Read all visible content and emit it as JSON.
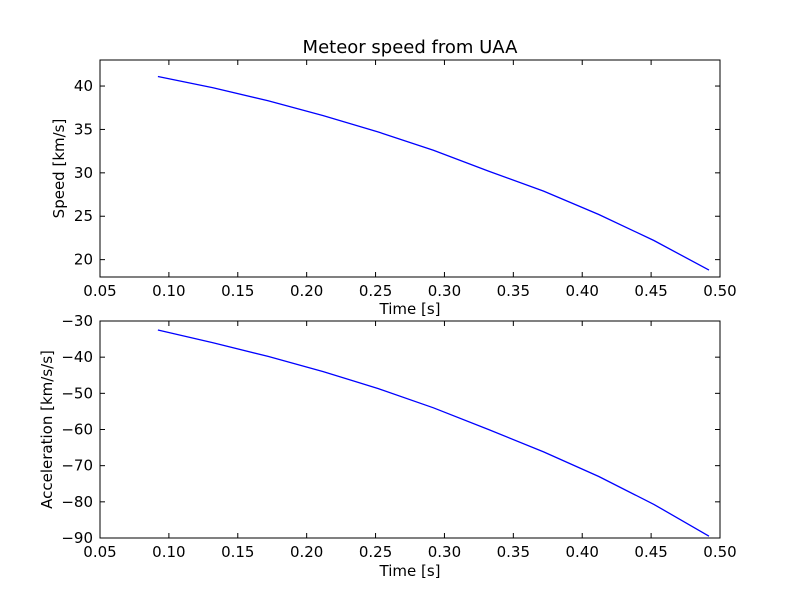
{
  "chart_data": [
    {
      "type": "line",
      "title": "Meteor speed from  UAA",
      "xlabel": "Time [s]",
      "ylabel": "Speed [km/s]",
      "xlim": [
        0.05,
        0.5
      ],
      "ylim": [
        18,
        43
      ],
      "xticks": [
        "0.05",
        "0.10",
        "0.15",
        "0.20",
        "0.25",
        "0.30",
        "0.35",
        "0.40",
        "0.45",
        "0.50"
      ],
      "yticks": [
        "20",
        "25",
        "30",
        "35",
        "40"
      ],
      "grid": false,
      "colors": {
        "line": "#0000ff"
      },
      "series": [
        {
          "x": [
            0.092,
            0.132,
            0.172,
            0.212,
            0.252,
            0.292,
            0.332,
            0.372,
            0.412,
            0.452,
            0.492
          ],
          "y": [
            41.1,
            39.8,
            38.3,
            36.6,
            34.7,
            32.6,
            30.2,
            27.9,
            25.2,
            22.2,
            18.8
          ]
        }
      ]
    },
    {
      "type": "line",
      "title": "",
      "xlabel": "Time [s]",
      "ylabel": "Acceleration [km/s/s]",
      "xlim": [
        0.05,
        0.5
      ],
      "ylim": [
        -90,
        -30
      ],
      "xticks": [
        "0.05",
        "0.10",
        "0.15",
        "0.20",
        "0.25",
        "0.30",
        "0.35",
        "0.40",
        "0.45",
        "0.50"
      ],
      "yticks": [
        "−30",
        "−40",
        "−50",
        "−60",
        "−70",
        "−80",
        "−90"
      ],
      "grid": false,
      "colors": {
        "line": "#0000ff"
      },
      "series": [
        {
          "x": [
            0.092,
            0.132,
            0.172,
            0.212,
            0.252,
            0.292,
            0.332,
            0.372,
            0.412,
            0.452,
            0.492
          ],
          "y": [
            -32.5,
            -36.0,
            -39.8,
            -44.0,
            -48.7,
            -54.0,
            -60.0,
            -66.2,
            -73.0,
            -80.7,
            -89.5
          ]
        }
      ]
    }
  ]
}
